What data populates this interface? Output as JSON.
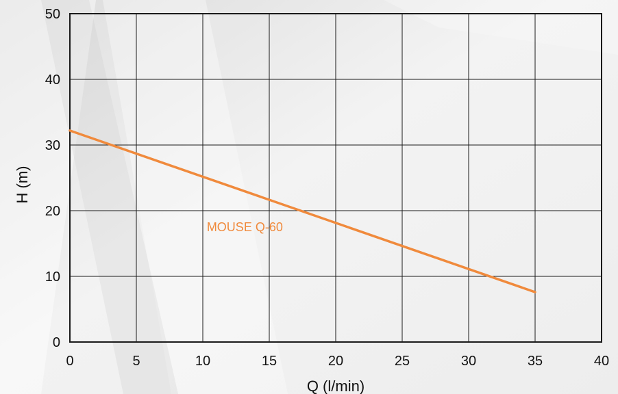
{
  "chart_data": {
    "type": "line",
    "xlabel": "Q (l/min)",
    "ylabel": "H (m)",
    "xlim": [
      0,
      40
    ],
    "ylim": [
      0,
      50
    ],
    "x_ticks": [
      0,
      5,
      10,
      15,
      20,
      25,
      30,
      35,
      40
    ],
    "y_ticks": [
      0,
      10,
      20,
      30,
      40,
      50
    ],
    "grid": true,
    "series": [
      {
        "name": "MOUSE Q-60",
        "color": "#F08A3C",
        "x": [
          0,
          35
        ],
        "y": [
          32.2,
          7.6
        ]
      }
    ]
  },
  "colors": {
    "background_light": "#F3F3F3",
    "background_dark": "#D9D9D9",
    "grid": "#1A1A1A",
    "text": "#111111"
  }
}
